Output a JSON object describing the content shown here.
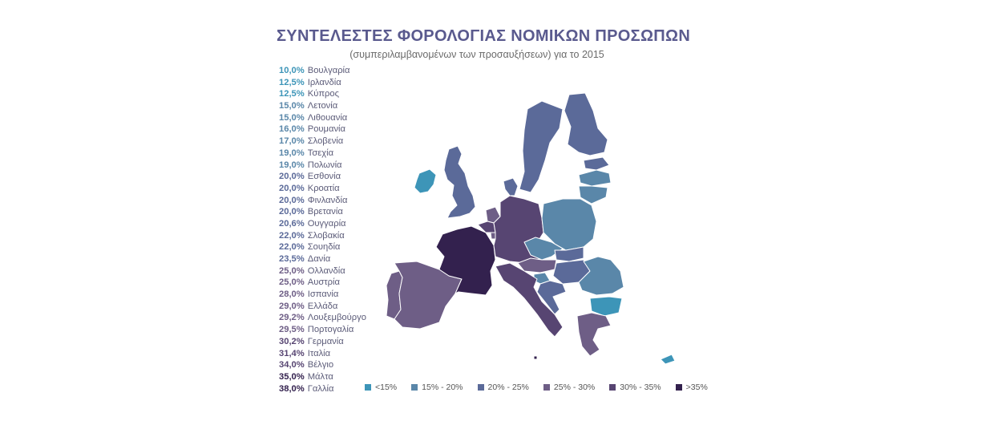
{
  "title": "ΣΥΝΤΕΛΕΣΤΕΣ ΦΟΡΟΛΟΓΙΑΣ ΝΟΜΙΚΩΝ ΠΡΟΣΩΠΩΝ",
  "subtitle": "(συμπεριλαμβανομένων των προσαυξήσεων) για το 2015",
  "colors": {
    "lt15": "#3d95b8",
    "c15_20": "#5a87a9",
    "c20_25": "#5b6a99",
    "c25_30": "#6e5e86",
    "c30_35": "#574572",
    "gt35": "#33214e",
    "no_data": "#ffffff"
  },
  "rates": [
    {
      "value": "10,0%",
      "country": "Βουλγαρία",
      "color": "#3d95b8"
    },
    {
      "value": "12,5%",
      "country": "Ιρλανδία",
      "color": "#3d95b8"
    },
    {
      "value": "12,5%",
      "country": "Κύπρος",
      "color": "#3d95b8"
    },
    {
      "value": "15,0%",
      "country": "Λετονία",
      "color": "#5a87a9"
    },
    {
      "value": "15,0%",
      "country": "Λιθουανία",
      "color": "#5a87a9"
    },
    {
      "value": "16,0%",
      "country": "Ρουμανία",
      "color": "#5a87a9"
    },
    {
      "value": "17,0%",
      "country": "Σλοβενία",
      "color": "#5a87a9"
    },
    {
      "value": "19,0%",
      "country": "Τσεχία",
      "color": "#5a87a9"
    },
    {
      "value": "19,0%",
      "country": "Πολωνία",
      "color": "#5a87a9"
    },
    {
      "value": "20,0%",
      "country": "Εσθονία",
      "color": "#5b6a99"
    },
    {
      "value": "20,0%",
      "country": "Κροατία",
      "color": "#5b6a99"
    },
    {
      "value": "20,0%",
      "country": "Φινλανδία",
      "color": "#5b6a99"
    },
    {
      "value": "20,0%",
      "country": "Βρετανία",
      "color": "#5b6a99"
    },
    {
      "value": "20,6%",
      "country": "Ουγγαρία",
      "color": "#5b6a99"
    },
    {
      "value": "22,0%",
      "country": "Σλοβακία",
      "color": "#5b6a99"
    },
    {
      "value": "22,0%",
      "country": "Σουηδία",
      "color": "#5b6a99"
    },
    {
      "value": "23,5%",
      "country": "Δανία",
      "color": "#5b6a99"
    },
    {
      "value": "25,0%",
      "country": "Ολλανδία",
      "color": "#6e5e86"
    },
    {
      "value": "25,0%",
      "country": "Αυστρία",
      "color": "#6e5e86"
    },
    {
      "value": "28,0%",
      "country": "Ισπανία",
      "color": "#6e5e86"
    },
    {
      "value": "29,0%",
      "country": "Ελλάδα",
      "color": "#6e5e86"
    },
    {
      "value": "29,2%",
      "country": "Λουξεμβούργο",
      "color": "#6e5e86"
    },
    {
      "value": "29,5%",
      "country": "Πορτογαλία",
      "color": "#6e5e86"
    },
    {
      "value": "30,2%",
      "country": "Γερμανία",
      "color": "#574572"
    },
    {
      "value": "31,4%",
      "country": "Ιταλία",
      "color": "#574572"
    },
    {
      "value": "34,0%",
      "country": "Βέλγιο",
      "color": "#574572"
    },
    {
      "value": "35,0%",
      "country": "Μάλτα",
      "color": "#33214e"
    },
    {
      "value": "38,0%",
      "country": "Γαλλία",
      "color": "#33214e"
    }
  ],
  "legend": [
    {
      "label": "<15%",
      "color": "#3d95b8"
    },
    {
      "label": "15% - 20%",
      "color": "#5a87a9"
    },
    {
      "label": "20% - 25%",
      "color": "#5b6a99"
    },
    {
      "label": "25% - 30%",
      "color": "#6e5e86"
    },
    {
      "label": "30% - 35%",
      "color": "#574572"
    },
    {
      "label": ">35%",
      "color": "#33214e"
    }
  ]
}
